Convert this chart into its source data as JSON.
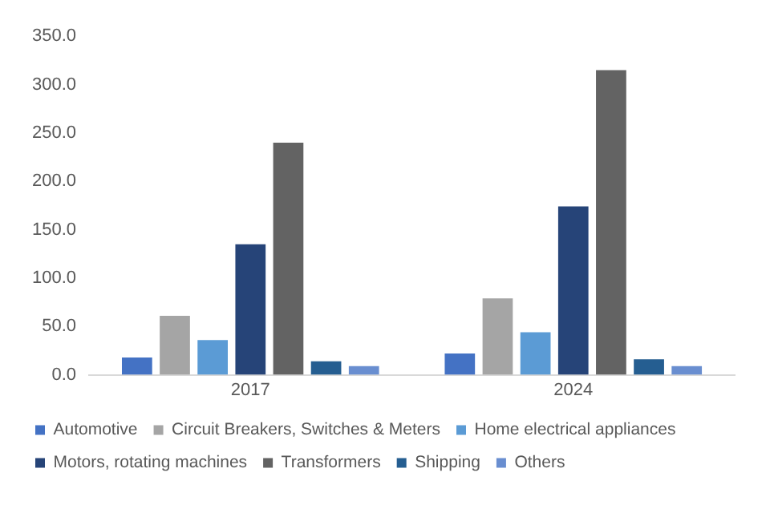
{
  "chart_data": {
    "type": "bar",
    "categories": [
      "2017",
      "2024"
    ],
    "series": [
      {
        "name": "Automotive",
        "color": "#4472c4",
        "values": [
          18,
          22
        ]
      },
      {
        "name": "Circuit Breakers, Switches & Meters",
        "color": "#a5a5a5",
        "values": [
          61,
          79
        ]
      },
      {
        "name": "Home electrical appliances",
        "color": "#5b9bd5",
        "values": [
          36,
          44
        ]
      },
      {
        "name": "Motors, rotating machines",
        "color": "#264478",
        "values": [
          135,
          174
        ]
      },
      {
        "name": "Transformers",
        "color": "#636363",
        "values": [
          240,
          315
        ]
      },
      {
        "name": "Shipping",
        "color": "#255e91",
        "values": [
          14,
          16
        ]
      },
      {
        "name": "Others",
        "color": "#698ed0",
        "values": [
          9,
          9
        ]
      }
    ],
    "ylim": [
      0,
      350
    ],
    "yticks": [
      {
        "value": 0,
        "label": "0.0"
      },
      {
        "value": 50,
        "label": "50.0"
      },
      {
        "value": 100,
        "label": "100.0"
      },
      {
        "value": 150,
        "label": "150.0"
      },
      {
        "value": 200,
        "label": "200.0"
      },
      {
        "value": 250,
        "label": "250.0"
      },
      {
        "value": 300,
        "label": "300.0"
      },
      {
        "value": 350,
        "label": "350.0"
      }
    ],
    "grid": false,
    "legend": "bottom"
  }
}
